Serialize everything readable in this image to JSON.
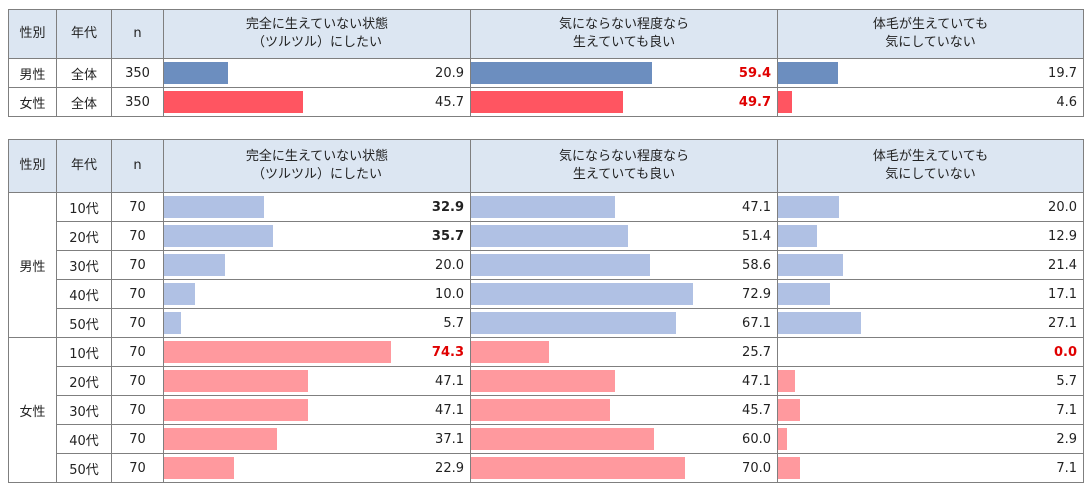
{
  "headers": {
    "gender": "性別",
    "age": "年代",
    "n": "n",
    "c1": [
      "完全に生えていない状態",
      "（ツルツル）にしたい"
    ],
    "c2": [
      "気にならない程度なら",
      "生えていても良い"
    ],
    "c3": [
      "体毛が生えていても",
      "気にしていない"
    ]
  },
  "colors": {
    "male_total": "#6c8ebf",
    "female_total": "#ff5561",
    "male_age": "#b0c1e4",
    "female_age": "#ff999e",
    "highlight_red": "#e00000",
    "header_bg": "#dce6f2"
  },
  "chart_data": [
    {
      "type": "table",
      "title": "",
      "columns": [
        "完全に生えていない状態（ツルツル）にしたい",
        "気にならない程度なら生えていても良い",
        "体毛が生えていても気にしていない"
      ],
      "scale_max": 100,
      "rows": [
        {
          "gender": "男性",
          "age": "全体",
          "n": "350",
          "values": [
            20.9,
            59.4,
            19.7
          ],
          "labels": [
            "20.9",
            "59.4",
            "19.7"
          ],
          "styles": [
            "",
            "r",
            ""
          ]
        },
        {
          "gender": "女性",
          "age": "全体",
          "n": "350",
          "values": [
            45.7,
            49.7,
            4.6
          ],
          "labels": [
            "45.7",
            "49.7",
            "4.6"
          ],
          "styles": [
            "",
            "r",
            ""
          ]
        }
      ]
    },
    {
      "type": "table",
      "title": "",
      "columns": [
        "完全に生えていない状態（ツルツル）にしたい",
        "気にならない程度なら生えていても良い",
        "体毛が生えていても気にしていない"
      ],
      "scale_max": 100,
      "rows": [
        {
          "gender": "男性",
          "age": "10代",
          "n": "70",
          "values": [
            32.9,
            47.1,
            20.0
          ],
          "labels": [
            "32.9",
            "47.1",
            "20.0"
          ],
          "styles": [
            "b",
            "",
            ""
          ]
        },
        {
          "gender": "男性",
          "age": "20代",
          "n": "70",
          "values": [
            35.7,
            51.4,
            12.9
          ],
          "labels": [
            "35.7",
            "51.4",
            "12.9"
          ],
          "styles": [
            "b",
            "",
            ""
          ]
        },
        {
          "gender": "男性",
          "age": "30代",
          "n": "70",
          "values": [
            20.0,
            58.6,
            21.4
          ],
          "labels": [
            "20.0",
            "58.6",
            "21.4"
          ],
          "styles": [
            "",
            "",
            ""
          ]
        },
        {
          "gender": "男性",
          "age": "40代",
          "n": "70",
          "values": [
            10.0,
            72.9,
            17.1
          ],
          "labels": [
            "10.0",
            "72.9",
            "17.1"
          ],
          "styles": [
            "",
            "",
            ""
          ]
        },
        {
          "gender": "男性",
          "age": "50代",
          "n": "70",
          "values": [
            5.7,
            67.1,
            27.1
          ],
          "labels": [
            "5.7",
            "67.1",
            "27.1"
          ],
          "styles": [
            "",
            "",
            ""
          ]
        },
        {
          "gender": "女性",
          "age": "10代",
          "n": "70",
          "values": [
            74.3,
            25.7,
            0.0
          ],
          "labels": [
            "74.3",
            "25.7",
            "0.0"
          ],
          "styles": [
            "r",
            "",
            "r"
          ]
        },
        {
          "gender": "女性",
          "age": "20代",
          "n": "70",
          "values": [
            47.1,
            47.1,
            5.7
          ],
          "labels": [
            "47.1",
            "47.1",
            "5.7"
          ],
          "styles": [
            "",
            "",
            ""
          ]
        },
        {
          "gender": "女性",
          "age": "30代",
          "n": "70",
          "values": [
            47.1,
            45.7,
            7.1
          ],
          "labels": [
            "47.1",
            "45.7",
            "7.1"
          ],
          "styles": [
            "",
            "",
            ""
          ]
        },
        {
          "gender": "女性",
          "age": "40代",
          "n": "70",
          "values": [
            37.1,
            60.0,
            2.9
          ],
          "labels": [
            "37.1",
            "60.0",
            "2.9"
          ],
          "styles": [
            "",
            "",
            ""
          ]
        },
        {
          "gender": "女性",
          "age": "50代",
          "n": "70",
          "values": [
            22.9,
            70.0,
            7.1
          ],
          "labels": [
            "22.9",
            "70.0",
            "7.1"
          ],
          "styles": [
            "",
            "",
            ""
          ]
        }
      ]
    }
  ]
}
